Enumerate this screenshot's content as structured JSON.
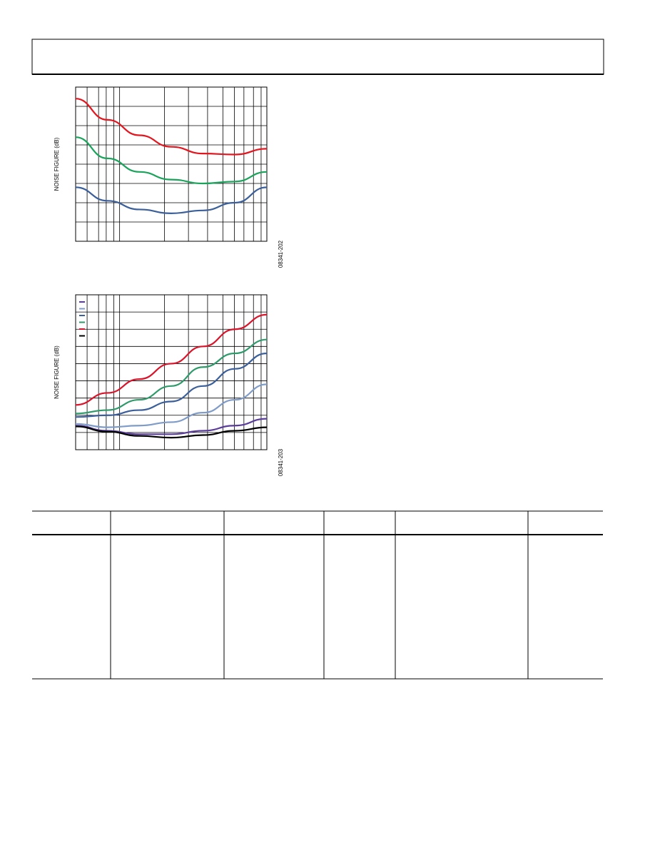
{
  "chart_data": [
    {
      "type": "line",
      "y_label": "NOISE FIGURE (dB)",
      "figure_code": "08341-202",
      "categories": [
        null,
        null,
        null,
        null,
        null,
        null,
        null
      ],
      "ylim": [
        0,
        8
      ],
      "series": [
        {
          "color": "#e3161f",
          "values": [
            7.4,
            6.3,
            5.5,
            4.9,
            4.55,
            4.5,
            4.8
          ]
        },
        {
          "color": "#1aa35a",
          "values": [
            5.4,
            4.3,
            3.6,
            3.2,
            3.0,
            3.1,
            3.6
          ]
        },
        {
          "color": "#3b5f9a",
          "values": [
            2.8,
            2.1,
            1.65,
            1.45,
            1.6,
            2.0,
            2.8
          ]
        }
      ]
    },
    {
      "type": "line",
      "y_label": "NOISE FIGURE (dB)",
      "figure_code": "08341-203",
      "categories": [
        null,
        null,
        null,
        null,
        null,
        null,
        null
      ],
      "ylim": [
        0,
        9
      ],
      "series": [
        {
          "color": "#5a3d9a",
          "values": [
            1.4,
            1.1,
            0.9,
            0.9,
            1.1,
            1.4,
            1.8
          ]
        },
        {
          "color": "#7f9cc8",
          "values": [
            1.5,
            1.3,
            1.4,
            1.6,
            2.15,
            2.9,
            3.8
          ]
        },
        {
          "color": "#3b5f9a",
          "values": [
            1.9,
            2.0,
            2.3,
            2.8,
            3.7,
            4.7,
            5.6
          ]
        },
        {
          "color": "#2e9a6a",
          "values": [
            2.1,
            2.3,
            2.9,
            3.7,
            4.8,
            5.6,
            6.4
          ]
        },
        {
          "color": "#d9142b",
          "values": [
            2.6,
            3.3,
            4.1,
            5.0,
            6.0,
            7.0,
            7.85
          ]
        },
        {
          "color": "#000000",
          "values": [
            1.35,
            1.05,
            0.8,
            0.7,
            0.85,
            1.1,
            1.3
          ]
        }
      ]
    }
  ]
}
